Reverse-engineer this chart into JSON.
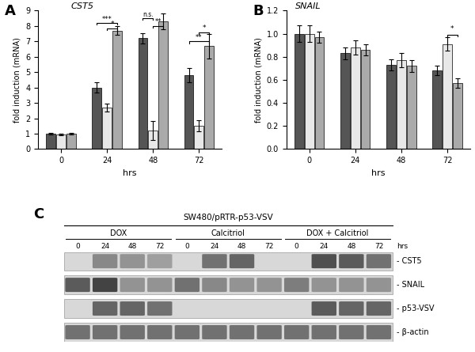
{
  "panel_A": {
    "title": "CST5",
    "ylabel": "fold induction (mRNA)",
    "xlabel": "hrs",
    "xticks": [
      0,
      24,
      48,
      72
    ],
    "ylim": [
      0,
      9
    ],
    "yticks": [
      0,
      1,
      2,
      3,
      4,
      5,
      6,
      7,
      8,
      9
    ],
    "groups": {
      "DOX": [
        1.0,
        4.0,
        7.2,
        4.8
      ],
      "Calcitriol": [
        0.95,
        2.7,
        1.2,
        1.5
      ],
      "DOX+Calcitriol": [
        1.0,
        7.7,
        8.3,
        6.7
      ]
    },
    "errors": {
      "DOX": [
        0.07,
        0.35,
        0.35,
        0.45
      ],
      "Calcitriol": [
        0.07,
        0.25,
        0.6,
        0.35
      ],
      "DOX+Calcitriol": [
        0.07,
        0.3,
        0.5,
        0.8
      ]
    }
  },
  "panel_B": {
    "title": "SNAIL",
    "ylabel": "fold induction (mRNA)",
    "xlabel": "hrs",
    "xticks": [
      0,
      24,
      48,
      72
    ],
    "ylim": [
      0,
      1.2
    ],
    "yticks": [
      0,
      0.2,
      0.4,
      0.6,
      0.8,
      1.0,
      1.2
    ],
    "groups": {
      "DOX": [
        1.0,
        0.83,
        0.73,
        0.68
      ],
      "Calcitriol": [
        1.0,
        0.88,
        0.77,
        0.91
      ],
      "DOX+Calcitriol": [
        0.97,
        0.86,
        0.72,
        0.57
      ]
    },
    "errors": {
      "DOX": [
        0.07,
        0.05,
        0.05,
        0.04
      ],
      "Calcitriol": [
        0.07,
        0.06,
        0.06,
        0.06
      ],
      "DOX+Calcitriol": [
        0.05,
        0.05,
        0.05,
        0.04
      ]
    },
    "cell_line": "SW480/\npRTR-p53-VSV",
    "legend_labels": [
      "DOX",
      "Calcitriol",
      "DOX + Calcitriol"
    ]
  },
  "colors": {
    "DOX": "#555555",
    "Calcitriol": "#e8e8e8",
    "DOX+Calcitriol": "#aaaaaa"
  },
  "panel_C": {
    "title": "SW480/pRTR-p53-VSV",
    "groups": [
      "DOX",
      "Calcitriol",
      "DOX + Calcitriol"
    ],
    "timepoints": [
      "0",
      "24",
      "48",
      "72"
    ],
    "proteins": [
      "- CST5",
      "- SNAIL",
      "- p53-VSV",
      "- β-actin"
    ],
    "band_patterns": {
      "CST5": [
        0.85,
        0.5,
        0.55,
        0.6,
        0.85,
        0.4,
        0.35,
        0.85,
        0.85,
        0.25,
        0.3,
        0.4
      ],
      "SNAIL": [
        0.3,
        0.2,
        0.55,
        0.55,
        0.4,
        0.5,
        0.55,
        0.55,
        0.45,
        0.55,
        0.55,
        0.55
      ],
      "p53-VSV": [
        0.85,
        0.35,
        0.35,
        0.4,
        0.85,
        0.85,
        0.85,
        0.85,
        0.85,
        0.3,
        0.35,
        0.35
      ],
      "b-actin": [
        0.4,
        0.4,
        0.4,
        0.4,
        0.4,
        0.4,
        0.4,
        0.4,
        0.4,
        0.4,
        0.4,
        0.4
      ]
    }
  }
}
